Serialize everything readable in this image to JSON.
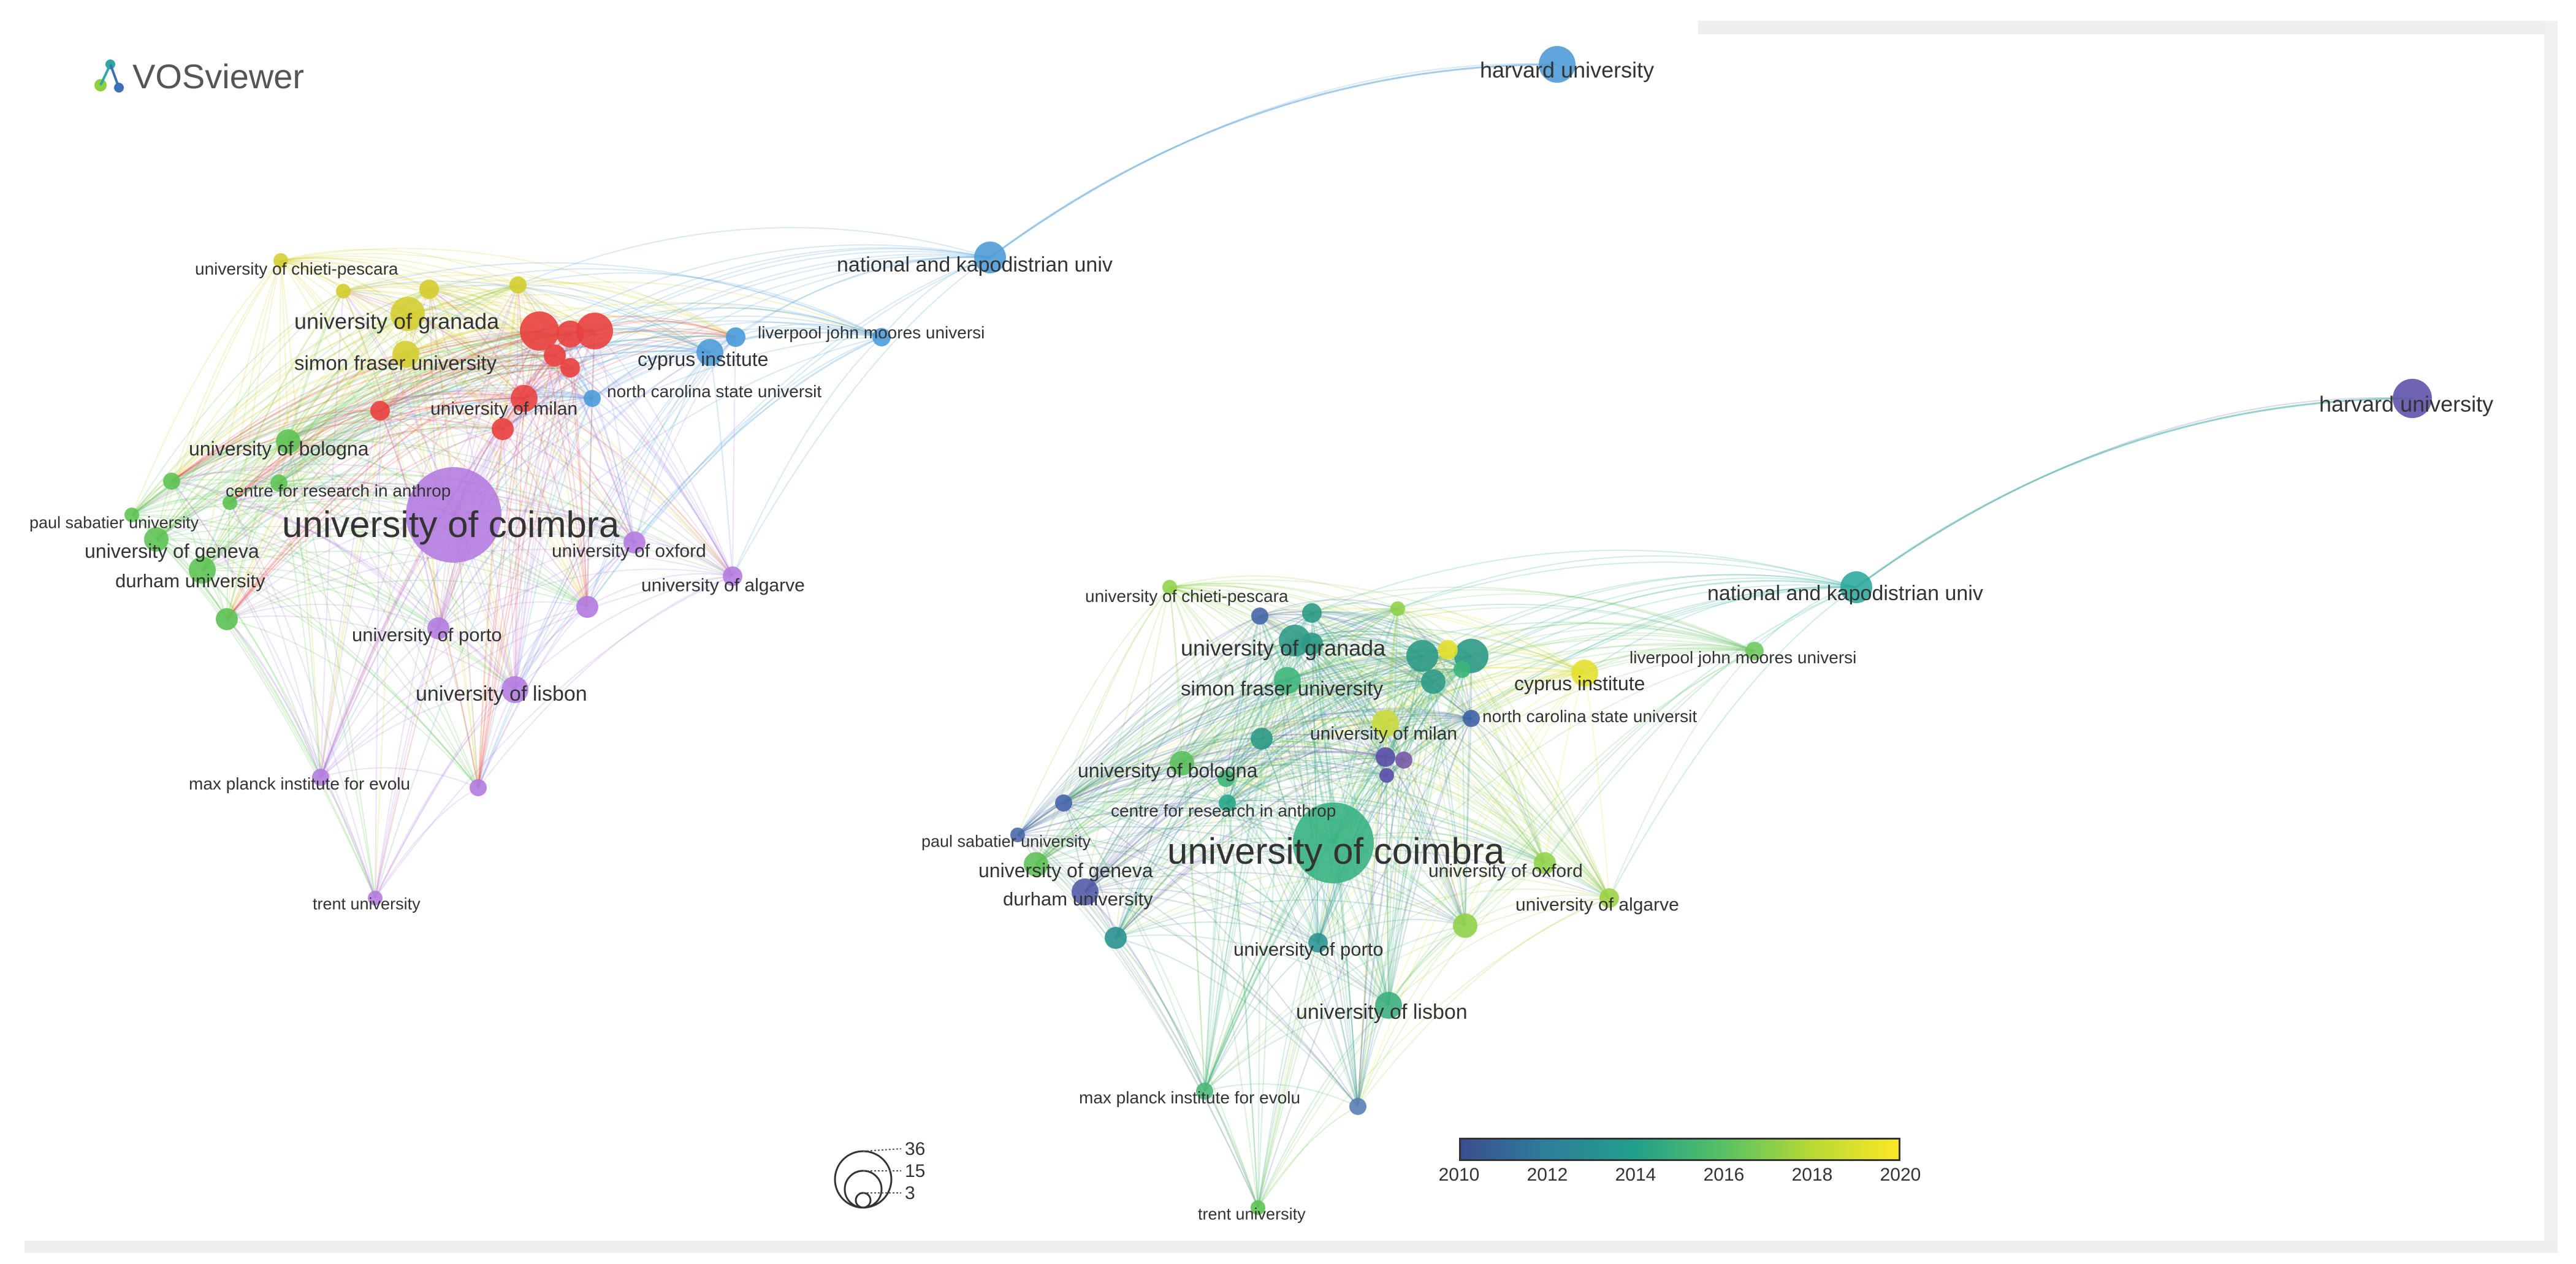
{
  "app": {
    "logo_text": "VOSviewer"
  },
  "left_network": {
    "nodes": [
      {
        "id": "harvard",
        "label": "harvard university",
        "color": "#4a9ad8"
      },
      {
        "id": "nkua",
        "label": "national and kapodistrian univ",
        "color": "#4a9ad8"
      },
      {
        "id": "chieti",
        "label": "university of chieti-pescara",
        "color": "#d4cd2e"
      },
      {
        "id": "granada",
        "label": "university of granada",
        "color": "#d4cd2e"
      },
      {
        "id": "sfu",
        "label": "simon fraser university",
        "color": "#d4cd2e"
      },
      {
        "id": "liverpool",
        "label": "liverpool john moores universi",
        "color": "#4a9ad8"
      },
      {
        "id": "cyprus",
        "label": "cyprus institute",
        "color": "#4a9ad8"
      },
      {
        "id": "ncsu",
        "label": "north carolina state universit",
        "color": "#4a9ad8"
      },
      {
        "id": "milan",
        "label": "university of milan",
        "color": "#e8403e"
      },
      {
        "id": "bologna",
        "label": "university of bologna",
        "color": "#5cc252"
      },
      {
        "id": "cria",
        "label": "centre for research in anthrop",
        "color": "#5cc252"
      },
      {
        "id": "sabatier",
        "label": "paul sabatier university",
        "color": "#5cc252"
      },
      {
        "id": "coimbra",
        "label": "university of coimbra",
        "color": "#b37ae0"
      },
      {
        "id": "geneva",
        "label": "university of geneva",
        "color": "#5cc252"
      },
      {
        "id": "oxford",
        "label": "university of oxford",
        "color": "#b37ae0"
      },
      {
        "id": "durham",
        "label": "durham university",
        "color": "#5cc252"
      },
      {
        "id": "algarve",
        "label": "university of algarve",
        "color": "#b37ae0"
      },
      {
        "id": "porto",
        "label": "university of porto",
        "color": "#b37ae0"
      },
      {
        "id": "lisbon",
        "label": "university of lisbon",
        "color": "#b37ae0"
      },
      {
        "id": "maxplanck",
        "label": "max planck institute for evolu",
        "color": "#b37ae0"
      },
      {
        "id": "trent",
        "label": "trent university",
        "color": "#b37ae0"
      }
    ]
  },
  "right_network": {
    "nodes": [
      {
        "id": "harvard",
        "label": "harvard university",
        "color": "#5a4fa8"
      },
      {
        "id": "nkua",
        "label": "national and kapodistrian univ",
        "color": "#2aa79a"
      },
      {
        "id": "chieti",
        "label": "university of chieti-pescara",
        "color": "#8fd14a"
      },
      {
        "id": "granada",
        "label": "university of granada",
        "color": "#2e9a86"
      },
      {
        "id": "sfu",
        "label": "simon fraser university",
        "color": "#3db57a"
      },
      {
        "id": "liverpool",
        "label": "liverpool john moores universi",
        "color": "#6cc65a"
      },
      {
        "id": "cyprus",
        "label": "cyprus institute",
        "color": "#e3df2e"
      },
      {
        "id": "ncsu",
        "label": "north carolina state universit",
        "color": "#3b5ea5"
      },
      {
        "id": "milan",
        "label": "university of milan",
        "color": "#c9d93a"
      },
      {
        "id": "bologna",
        "label": "university of bologna",
        "color": "#58bf5a"
      },
      {
        "id": "cria",
        "label": "centre for research in anthrop",
        "color": "#28a686"
      },
      {
        "id": "sabatier",
        "label": "paul sabatier university",
        "color": "#4766a8"
      },
      {
        "id": "coimbra",
        "label": "university of coimbra",
        "color": "#35b27f"
      },
      {
        "id": "geneva",
        "label": "university of geneva",
        "color": "#5cbf55"
      },
      {
        "id": "oxford",
        "label": "university of oxford",
        "color": "#8fd14a"
      },
      {
        "id": "durham",
        "label": "durham university",
        "color": "#4f5aa5"
      },
      {
        "id": "algarve",
        "label": "university of algarve",
        "color": "#9ad242"
      },
      {
        "id": "porto",
        "label": "university of porto",
        "color": "#2a9391"
      },
      {
        "id": "lisbon",
        "label": "university of lisbon",
        "color": "#3aad7d"
      },
      {
        "id": "maxplanck",
        "label": "max planck institute for evolu",
        "color": "#4bb777"
      },
      {
        "id": "trent",
        "label": "trent university",
        "color": "#5cc252"
      }
    ]
  },
  "size_legend": {
    "values": [
      "36",
      "15",
      "3"
    ]
  },
  "color_legend": {
    "ticks": [
      "2010",
      "2012",
      "2014",
      "2016",
      "2018",
      "2020"
    ],
    "colors": [
      "#3b4d8f",
      "#2d7f9a",
      "#21a08a",
      "#57c165",
      "#b6d935",
      "#fde725"
    ]
  }
}
